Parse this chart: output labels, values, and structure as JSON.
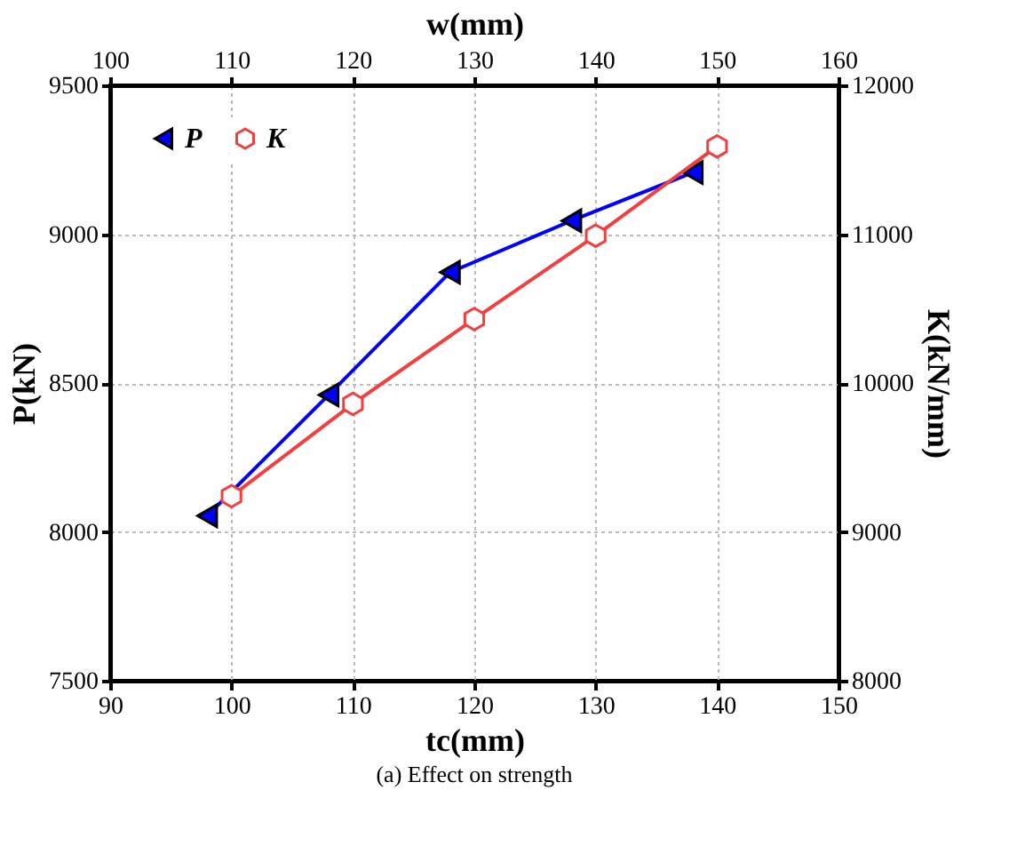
{
  "chart_data": {
    "type": "line",
    "xlabel": "tc(mm)",
    "x2label": "w(mm)",
    "ylabel": "P(kN)",
    "y2label": "K(kN/mm)",
    "xlim": [
      90,
      150
    ],
    "xticks": [
      90,
      100,
      110,
      120,
      130,
      140,
      150
    ],
    "x2lim": [
      100,
      160
    ],
    "x2ticks": [
      100,
      110,
      120,
      130,
      140,
      150,
      160
    ],
    "ylim": [
      7500,
      9500
    ],
    "yticks": [
      7500,
      8000,
      8500,
      9000,
      9500
    ],
    "y2lim": [
      8000,
      12000
    ],
    "y2ticks": [
      8000,
      9000,
      10000,
      11000,
      12000
    ],
    "grid": true,
    "legend": "top left",
    "line_style": "solid",
    "annotations": [
      "(a)      Effect on strength"
    ],
    "series": [
      {
        "name": "P",
        "color": "#0000ff",
        "marker": "triangle",
        "axis": "x2",
        "x": [
          108,
          118,
          128,
          138,
          148
        ],
        "values": [
          8054,
          8460,
          8872,
          9045,
          9207
        ]
      },
      {
        "name": "K",
        "color": "#f04040",
        "marker": "circle",
        "axis": "y2",
        "x": [
          100,
          110,
          120,
          130,
          140
        ],
        "values": [
          9240,
          9860,
          10430,
          10990,
          11590
        ]
      }
    ]
  }
}
